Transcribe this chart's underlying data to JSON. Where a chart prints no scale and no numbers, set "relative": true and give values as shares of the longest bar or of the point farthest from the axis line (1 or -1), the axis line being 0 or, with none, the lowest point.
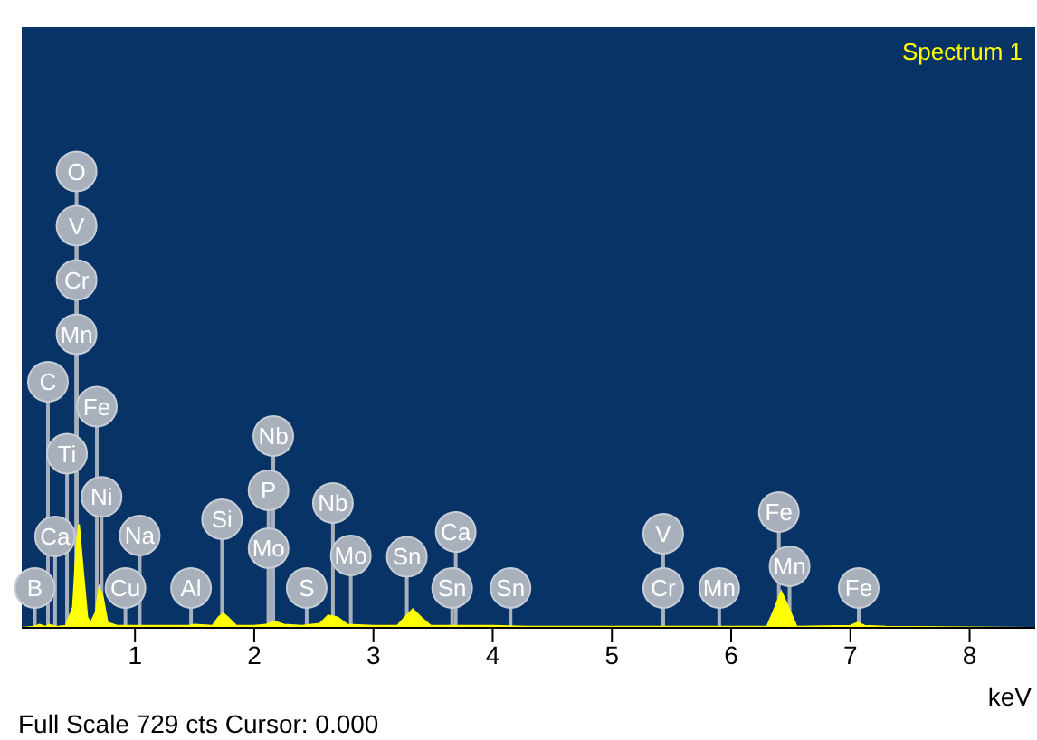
{
  "chart_data": {
    "type": "area",
    "title": "Spectrum 1",
    "xlabel": "keV",
    "relative": true,
    "color": "#ffff00",
    "xlim": [
      0.05,
      8.55
    ],
    "xticks": [
      1,
      2,
      3,
      4,
      5,
      6,
      7,
      8
    ],
    "grid": false,
    "x": [
      0.05,
      0.15,
      0.2,
      0.25,
      0.28,
      0.35,
      0.42,
      0.48,
      0.51,
      0.53,
      0.56,
      0.6,
      0.63,
      0.67,
      0.7,
      0.73,
      0.77,
      0.85,
      1.0,
      1.2,
      1.45,
      1.5,
      1.65,
      1.7,
      1.74,
      1.78,
      1.85,
      2.0,
      2.1,
      2.17,
      2.25,
      2.4,
      2.55,
      2.62,
      2.7,
      2.78,
      3.0,
      3.2,
      3.28,
      3.33,
      3.4,
      3.48,
      3.6,
      4.0,
      4.3,
      5.0,
      6.3,
      6.37,
      6.42,
      6.48,
      6.55,
      7.0,
      7.06,
      7.12,
      7.3,
      8.55
    ],
    "values": [
      0,
      0.01,
      0.03,
      0.01,
      0.03,
      0.01,
      0.02,
      0.2,
      0.8,
      1,
      0.6,
      0.1,
      0.05,
      0.15,
      0.39,
      0.3,
      0.05,
      0.02,
      0.02,
      0.02,
      0.02,
      0.03,
      0.02,
      0.1,
      0.14,
      0.1,
      0.02,
      0.02,
      0.03,
      0.06,
      0.03,
      0.02,
      0.04,
      0.12,
      0.1,
      0.03,
      0.02,
      0.02,
      0.12,
      0.18,
      0.1,
      0.02,
      0.02,
      0.02,
      0.01,
      0.01,
      0.01,
      0.2,
      0.35,
      0.2,
      0.01,
      0.02,
      0.05,
      0.02,
      0.01,
      0
    ],
    "annotations": [
      {
        "text": "B",
        "x": 0.16
      },
      {
        "text": "Cu",
        "x": 0.92
      },
      {
        "text": "S",
        "x": 2.44
      },
      {
        "text": "Mo",
        "x": 2.81
      },
      {
        "text": "Sn",
        "x": 3.66
      },
      {
        "text": "Sn",
        "x": 4.15
      },
      {
        "text": "Cr",
        "x": 5.43
      },
      {
        "text": "Mn",
        "x": 5.9
      },
      {
        "text": "Fe",
        "x": 7.07
      },
      {
        "text": "Al",
        "x": 1.47
      },
      {
        "text": "Sn",
        "x": 3.28
      },
      {
        "text": "Mo",
        "x": 2.12
      },
      {
        "text": "Mn",
        "x": 6.49
      },
      {
        "text": "Si",
        "x": 1.73
      },
      {
        "text": "Na",
        "x": 1.04
      },
      {
        "text": "Ca",
        "x": 0.33
      },
      {
        "text": "Nb",
        "x": 2.66
      },
      {
        "text": "Ca",
        "x": 3.69
      },
      {
        "text": "V",
        "x": 5.43
      },
      {
        "text": "Ni",
        "x": 0.72
      },
      {
        "text": "P",
        "x": 2.12
      },
      {
        "text": "Fe",
        "x": 6.4
      },
      {
        "text": "Ti",
        "x": 0.43
      },
      {
        "text": "Nb",
        "x": 2.16
      },
      {
        "text": "Fe",
        "x": 0.68
      },
      {
        "text": "C",
        "x": 0.27
      },
      {
        "text": "Mn",
        "x": 0.51
      },
      {
        "text": "Cr",
        "x": 0.51
      },
      {
        "text": "V",
        "x": 0.51
      },
      {
        "text": "O",
        "x": 0.51
      },
      "Full Scale 729 cts Cursor: 0.000"
    ]
  }
}
